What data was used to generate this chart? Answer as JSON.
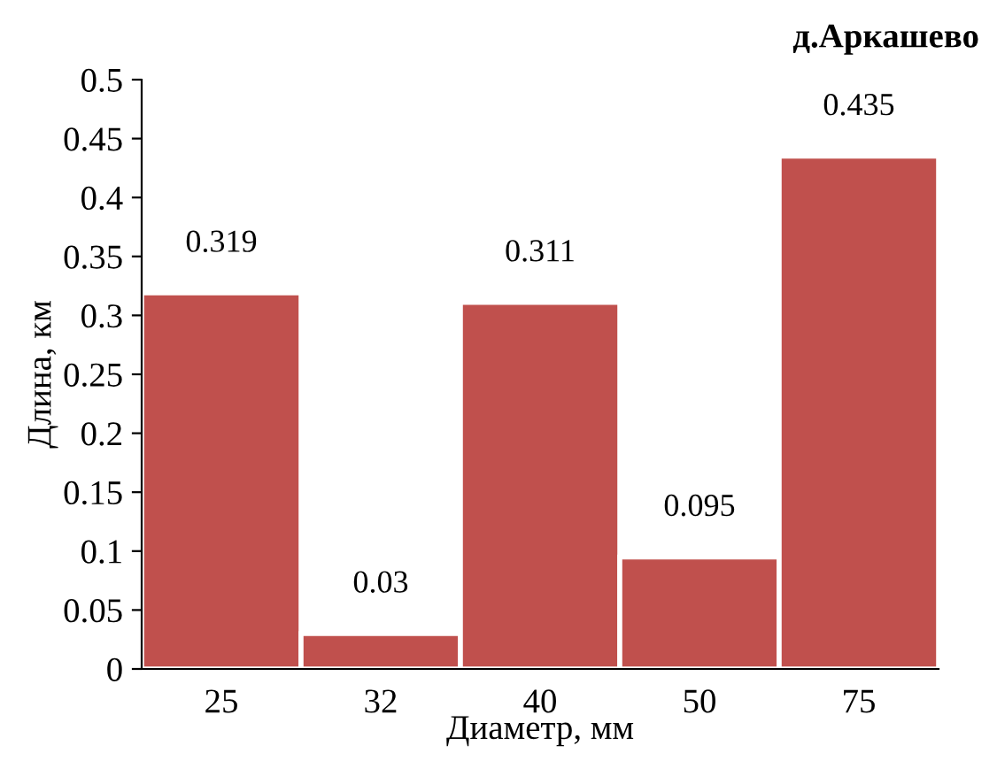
{
  "chart_data": {
    "type": "bar",
    "title": "д.Аркашево",
    "xlabel": "Диаметр, мм",
    "ylabel": "Длина, км",
    "categories": [
      "25",
      "32",
      "40",
      "50",
      "75"
    ],
    "values": [
      0.319,
      0.03,
      0.311,
      0.095,
      0.435
    ],
    "color": "#c0504d",
    "data_labels": true,
    "ylim": [
      0,
      0.5
    ],
    "yticks": [
      0,
      0.05,
      0.1,
      0.15,
      0.2,
      0.25,
      0.3,
      0.35,
      0.4,
      0.45,
      0.5
    ],
    "grid": false,
    "legend": false
  }
}
